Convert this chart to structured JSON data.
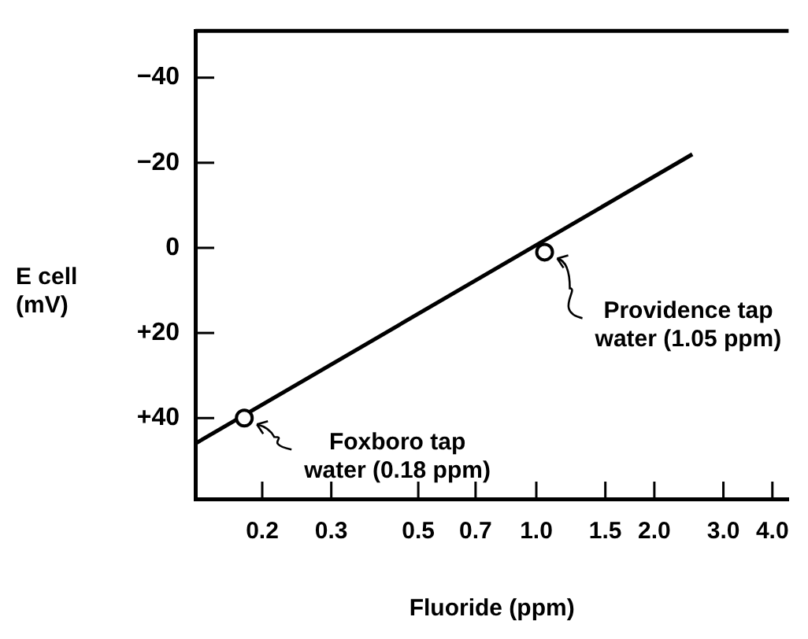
{
  "chart_data": {
    "type": "line",
    "xlabel": "Fluoride (ppm)",
    "ylabel": "E cell (mV)",
    "log": "x",
    "grid": false,
    "legend": false,
    "xlim": [
      0.135,
      4.4
    ],
    "xticks": [
      0.2,
      0.3,
      0.5,
      0.7,
      {
        "value": 1,
        "label": "1.0"
      },
      1.5,
      {
        "value": 2,
        "label": "2.0"
      },
      {
        "value": 3,
        "label": "3.0"
      },
      {
        "value": 4,
        "label": "4.0"
      }
    ],
    "ylim": [
      59,
      -51
    ],
    "yticks": [
      {
        "value": -40,
        "label": "−40"
      },
      {
        "value": -20,
        "label": "−20"
      },
      0,
      {
        "value": 20,
        "label": "+20"
      },
      {
        "value": 40,
        "label": "+40"
      }
    ],
    "series": [
      {
        "color": "#000000",
        "marker": "none",
        "x": [
          0.135,
          2.5
        ],
        "values": [
          46,
          -22
        ]
      },
      {
        "type": "scatter",
        "color": "#000000",
        "marker": "circle",
        "x": [
          0.18,
          1.05
        ],
        "values": [
          40,
          1
        ]
      }
    ],
    "annotations": [
      {
        "text": "Foxboro tap water (0.18 ppm)",
        "x": 0.18,
        "y": 40
      },
      {
        "text": "Providence tap water (1.05 ppm)",
        "x": 1.05,
        "y": 1
      }
    ]
  }
}
